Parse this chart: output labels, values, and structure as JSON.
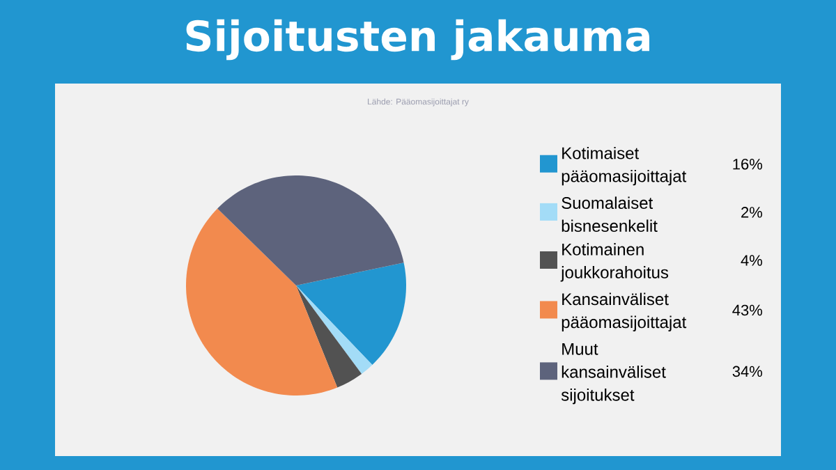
{
  "chart_data": {
    "type": "pie",
    "title": "Sijoitusten jakauma",
    "annotations": [
      "Lähde: Pääomasijoittajat ry"
    ],
    "categories": [
      "Kotimaiset pääomasijoittajat",
      "Suomalaiset bisnesenkelit",
      "Kotimainen joukkorahoitus",
      "Kansainväliset pääomasijoittajat",
      "Muut kansainväliset sijoitukset"
    ],
    "values": [
      16,
      2,
      4,
      43,
      34
    ],
    "value_labels": [
      "16%",
      "2%",
      "4%",
      "43%",
      "34%"
    ],
    "colors": [
      "#2296d0",
      "#a3dcf7",
      "#525252",
      "#f28a4e",
      "#5d637c"
    ],
    "legend": "right"
  }
}
